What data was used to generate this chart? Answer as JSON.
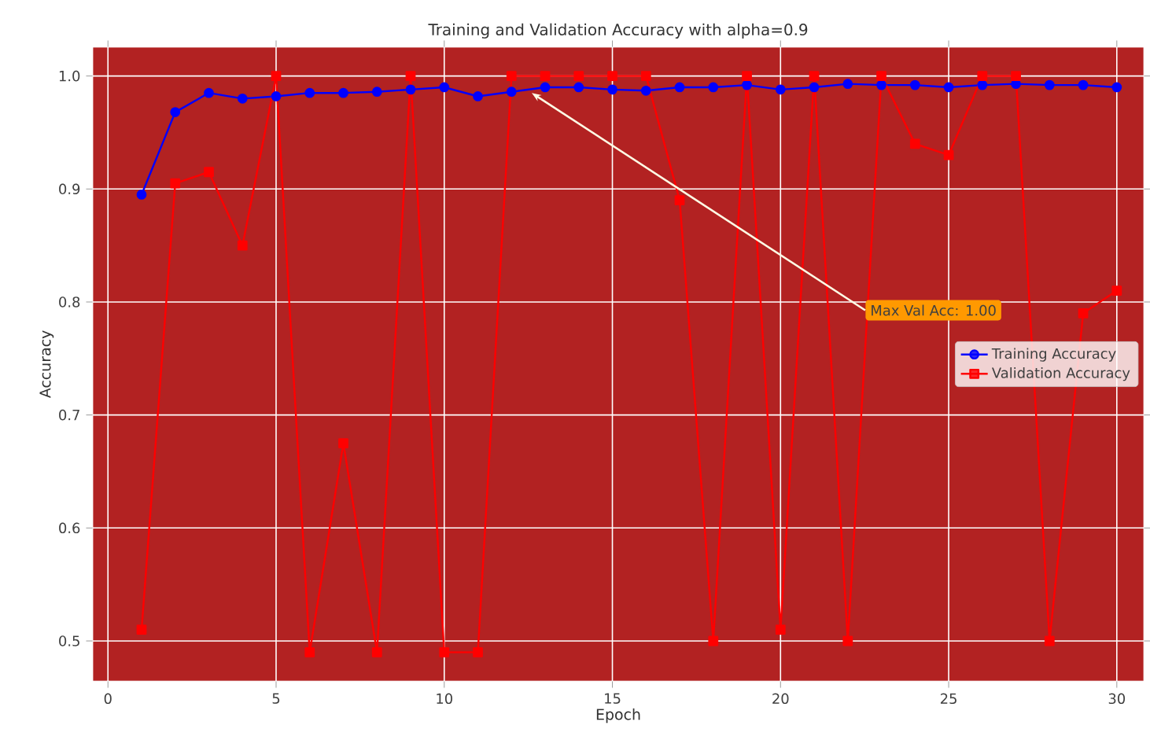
{
  "chart_data": {
    "type": "line",
    "title": "Training and Validation Accuracy with alpha=0.9",
    "xlabel": "Epoch",
    "ylabel": "Accuracy",
    "x": [
      1,
      2,
      3,
      4,
      5,
      6,
      7,
      8,
      9,
      10,
      11,
      12,
      13,
      14,
      15,
      16,
      17,
      18,
      19,
      20,
      21,
      22,
      23,
      24,
      25,
      26,
      27,
      28,
      29,
      30
    ],
    "series": [
      {
        "name": "Training Accuracy",
        "color": "#0000ff",
        "marker": "circle",
        "values": [
          0.895,
          0.968,
          0.985,
          0.98,
          0.982,
          0.985,
          0.985,
          0.986,
          0.988,
          0.99,
          0.982,
          0.986,
          0.99,
          0.99,
          0.988,
          0.987,
          0.99,
          0.99,
          0.992,
          0.988,
          0.99,
          0.993,
          0.992,
          0.992,
          0.99,
          0.992,
          0.993,
          0.992,
          0.992,
          0.99
        ]
      },
      {
        "name": "Validation Accuracy",
        "color": "#ff0000",
        "marker": "square",
        "values": [
          0.51,
          0.905,
          0.915,
          0.85,
          1.0,
          0.49,
          0.675,
          0.49,
          1.0,
          0.49,
          0.49,
          1.0,
          1.0,
          1.0,
          1.0,
          1.0,
          0.89,
          0.5,
          1.0,
          0.51,
          1.0,
          0.5,
          1.0,
          0.94,
          0.93,
          1.0,
          1.0,
          0.5,
          0.79,
          0.81
        ]
      }
    ],
    "xlim": [
      -0.45,
      30.8
    ],
    "ylim": [
      0.4645,
      1.0255
    ],
    "xticks": [
      0,
      5,
      10,
      15,
      20,
      25,
      30
    ],
    "yticks": [
      0.5,
      0.6,
      0.7,
      0.8,
      0.9,
      {
        "value": 1,
        "label": "1.0"
      }
    ],
    "grid": true,
    "legend": "right",
    "annotations": [
      {
        "text": "Max Val Acc: 1.00",
        "x": 12.6,
        "y": 0.985
      }
    ]
  }
}
